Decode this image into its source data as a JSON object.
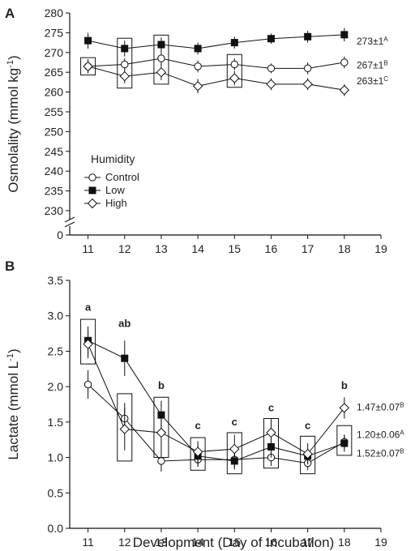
{
  "chart_data": [
    {
      "type": "line",
      "panel_label": "A",
      "ylabel": "Osmolality (mmol kg",
      "ylabel_sup": "-1",
      "ylabel_close": ")",
      "ylim": [
        230,
        280
      ],
      "axis_break": true,
      "xlim": [
        10.5,
        19
      ],
      "xticks": [
        11,
        12,
        13,
        14,
        15,
        16,
        17,
        18,
        19
      ],
      "yticks": [
        0,
        230,
        235,
        240,
        245,
        250,
        255,
        260,
        265,
        270,
        275,
        280
      ],
      "legend": {
        "title": "Humidity",
        "placement": "middle-left",
        "entries": [
          "Control",
          "Low",
          "High"
        ]
      },
      "x": [
        11,
        12,
        13,
        14,
        15,
        16,
        17,
        18
      ],
      "series": [
        {
          "name": "Control",
          "marker": "circle-open",
          "values": [
            266.5,
            267,
            268.5,
            266.5,
            267,
            266,
            266,
            267.5
          ],
          "err": [
            1.5,
            1.5,
            1.8,
            1.5,
            1.5,
            1.2,
            1.5,
            1.5
          ]
        },
        {
          "name": "Low",
          "marker": "square-filled",
          "values": [
            273,
            271,
            272,
            271,
            272.5,
            273.5,
            274,
            274.5
          ],
          "err": [
            2,
            2,
            1.8,
            1.5,
            1.5,
            1.3,
            1.5,
            1.7
          ]
        },
        {
          "name": "High",
          "marker": "diamond-open",
          "values": [
            266.5,
            264,
            265,
            261.5,
            263.5,
            262,
            262,
            260.5
          ],
          "err": [
            1.8,
            1.8,
            2,
            1.8,
            1.8,
            1.5,
            1.5,
            1.5
          ]
        }
      ],
      "boxes": [
        {
          "x": 11,
          "y1": 264.3,
          "y2": 268.7
        },
        {
          "x": 12,
          "y1": 261,
          "y2": 273.6
        },
        {
          "x": 13,
          "y1": 262,
          "y2": 274.4
        },
        {
          "x": 15,
          "y1": 261.2,
          "y2": 269.5
        }
      ],
      "end_labels": [
        {
          "y": 273,
          "text": "273±1",
          "sup": "A"
        },
        {
          "y": 267,
          "text": "267±1",
          "sup": "B"
        },
        {
          "y": 263,
          "text": "263±1",
          "sup": "C"
        }
      ]
    },
    {
      "type": "line",
      "panel_label": "B",
      "ylabel": "Lactate (mmol L",
      "ylabel_sup": "-1",
      "ylabel_close": ")",
      "xlabel": "Development (Day of Incubation)",
      "ylim": [
        0,
        3.5
      ],
      "xlim": [
        10.5,
        19
      ],
      "xticks": [
        11,
        12,
        13,
        14,
        15,
        16,
        17,
        18,
        19
      ],
      "yticks": [
        "0.0",
        "0.5",
        "1.0",
        "1.5",
        "2.0",
        "2.5",
        "3.0",
        "3.5"
      ],
      "x": [
        11,
        12,
        13,
        14,
        15,
        16,
        17,
        18
      ],
      "series": [
        {
          "name": "Control",
          "marker": "circle-open",
          "values": [
            2.03,
            1.55,
            0.95,
            0.97,
            0.97,
            1.0,
            0.92,
            1.22
          ],
          "err": [
            0.2,
            0.22,
            0.15,
            0.1,
            0.12,
            0.12,
            0.1,
            0.1
          ]
        },
        {
          "name": "Low",
          "marker": "square-filled",
          "values": [
            2.65,
            2.4,
            1.6,
            1.02,
            0.95,
            1.15,
            1.02,
            1.2
          ],
          "err": [
            0.2,
            0.25,
            0.2,
            0.15,
            0.12,
            0.15,
            0.1,
            0.12
          ]
        },
        {
          "name": "High",
          "marker": "diamond-open",
          "values": [
            2.6,
            1.4,
            1.35,
            1.08,
            1.12,
            1.35,
            1.05,
            1.7
          ],
          "err": [
            0.2,
            0.3,
            0.25,
            0.15,
            0.2,
            0.2,
            0.15,
            0.15
          ]
        }
      ],
      "boxes": [
        {
          "x": 11,
          "y1": 2.32,
          "y2": 2.95
        },
        {
          "x": 12,
          "y1": 0.95,
          "y2": 1.9
        },
        {
          "x": 13,
          "y1": 1.0,
          "y2": 1.85
        },
        {
          "x": 14,
          "y1": 0.82,
          "y2": 1.28
        },
        {
          "x": 15,
          "y1": 0.77,
          "y2": 1.35
        },
        {
          "x": 16,
          "y1": 0.85,
          "y2": 1.55
        },
        {
          "x": 17,
          "y1": 0.77,
          "y2": 1.3
        },
        {
          "x": 18,
          "y1": 1.03,
          "y2": 1.45
        }
      ],
      "letters": [
        {
          "x": 11,
          "y": 3.07,
          "text": "a"
        },
        {
          "x": 12,
          "y": 2.84,
          "text": "ab"
        },
        {
          "x": 13,
          "y": 1.97,
          "text": "b"
        },
        {
          "x": 14,
          "y": 1.4,
          "text": "c"
        },
        {
          "x": 15,
          "y": 1.45,
          "text": "c"
        },
        {
          "x": 16,
          "y": 1.65,
          "text": "c"
        },
        {
          "x": 17,
          "y": 1.4,
          "text": "c"
        },
        {
          "x": 18,
          "y": 1.97,
          "text": "b"
        }
      ],
      "end_labels": [
        {
          "y": 1.72,
          "text": "1.47±0.07",
          "sup": "B"
        },
        {
          "y": 1.33,
          "text": "1.20±0.06",
          "sup": "A"
        },
        {
          "y": 1.07,
          "text": "1.52±0.07",
          "sup": "B"
        }
      ]
    }
  ]
}
